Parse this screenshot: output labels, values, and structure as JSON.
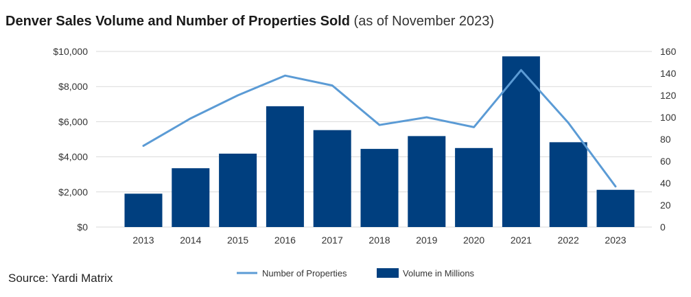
{
  "title": {
    "main": "Denver Sales Volume and Number of Properties Sold",
    "sub": "(as of November 2023)"
  },
  "source": "Source: Yardi Matrix",
  "colors": {
    "bar": "#003f7f",
    "line": "#5b9bd5",
    "grid": "#d9d9d9"
  },
  "chart_data": {
    "type": "bar",
    "categories": [
      "2013",
      "2014",
      "2015",
      "2016",
      "2017",
      "2018",
      "2019",
      "2020",
      "2021",
      "2022",
      "2023"
    ],
    "series": [
      {
        "name": "Volume in Millions",
        "type": "bar",
        "axis": "left",
        "values": [
          1900,
          3350,
          4180,
          6880,
          5520,
          4450,
          5180,
          4500,
          9720,
          4830,
          2120
        ]
      },
      {
        "name": "Number of Properties",
        "type": "line",
        "axis": "right",
        "values": [
          74,
          99,
          120,
          138,
          129,
          93,
          100,
          91,
          143,
          95,
          37
        ]
      }
    ],
    "y_left": {
      "ylim": [
        0,
        10000
      ],
      "ticks": [
        0,
        2000,
        4000,
        6000,
        8000,
        10000
      ],
      "tick_labels": [
        "$0",
        "$2,000",
        "$4,000",
        "$6,000",
        "$8,000",
        "$10,000"
      ]
    },
    "y_right": {
      "ylim": [
        0,
        160
      ],
      "ticks": [
        0,
        20,
        40,
        60,
        80,
        100,
        120,
        140,
        160
      ],
      "tick_labels": [
        "0",
        "20",
        "40",
        "60",
        "80",
        "100",
        "120",
        "140",
        "160"
      ]
    },
    "grid": true,
    "legend_position": "bottom"
  }
}
